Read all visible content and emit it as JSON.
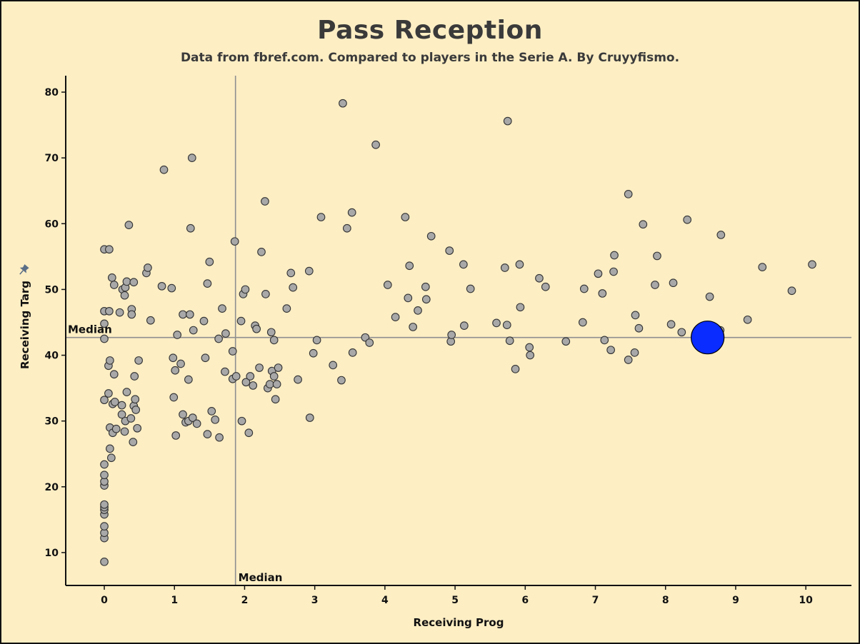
{
  "title": "Pass Reception",
  "subtitle": "Data from fbref.com. Compared to players in the Serie A. By Cruyyfismo.",
  "colors": {
    "background": "#fdeec4",
    "point_fill": "#a8a8a8",
    "point_stroke": "#333333",
    "highlight_fill": "#0a2cff",
    "median_line": "#8f8f8f"
  },
  "chart_data": {
    "type": "scatter",
    "xlabel": "Receiving Prog",
    "ylabel": "Receiving Targ",
    "xlim": [
      -0.55,
      10.65
    ],
    "ylim": [
      5,
      82.5
    ],
    "xticks": [
      0,
      1,
      2,
      3,
      4,
      5,
      6,
      7,
      8,
      9,
      10
    ],
    "yticks": [
      10,
      20,
      30,
      40,
      50,
      60,
      70,
      80
    ],
    "grid": false,
    "median": {
      "x": 1.87,
      "y": 42.7,
      "x_label": "Median",
      "y_label": "Median"
    },
    "highlight": {
      "x": 8.6,
      "y": 42.7
    },
    "points": [
      [
        0,
        8.6
      ],
      [
        0,
        12.2
      ],
      [
        0,
        13.0
      ],
      [
        0,
        14.0
      ],
      [
        0,
        15.8
      ],
      [
        0,
        16.5
      ],
      [
        0,
        16.9
      ],
      [
        0,
        17.3
      ],
      [
        0,
        20.2
      ],
      [
        0,
        20.8
      ],
      [
        0,
        21.8
      ],
      [
        0,
        23.4
      ],
      [
        0,
        33.2
      ],
      [
        0,
        42.5
      ],
      [
        0,
        44.8
      ],
      [
        0,
        46.7
      ],
      [
        0,
        56.1
      ],
      [
        0.07,
        56.1
      ],
      [
        0.07,
        46.7
      ],
      [
        0.06,
        38.4
      ],
      [
        0.08,
        39.2
      ],
      [
        0.06,
        34.2
      ],
      [
        0.08,
        29.0
      ],
      [
        0.08,
        25.8
      ],
      [
        0.1,
        24.4
      ],
      [
        0.12,
        32.6
      ],
      [
        0.14,
        37.1
      ],
      [
        0.12,
        28.2
      ],
      [
        0.15,
        32.9
      ],
      [
        0.17,
        28.8
      ],
      [
        0.11,
        51.8
      ],
      [
        0.14,
        50.7
      ],
      [
        0.22,
        46.5
      ],
      [
        0.25,
        31.0
      ],
      [
        0.25,
        32.4
      ],
      [
        0.26,
        50.0
      ],
      [
        0.29,
        49.1
      ],
      [
        0.3,
        50.3
      ],
      [
        0.3,
        30.0
      ],
      [
        0.29,
        28.4
      ],
      [
        0.32,
        51.2
      ],
      [
        0.32,
        34.4
      ],
      [
        0.35,
        59.8
      ],
      [
        0.39,
        47.0
      ],
      [
        0.39,
        46.2
      ],
      [
        0.38,
        30.4
      ],
      [
        0.41,
        26.8
      ],
      [
        0.42,
        32.3
      ],
      [
        0.42,
        51.1
      ],
      [
        0.43,
        36.8
      ],
      [
        0.44,
        33.3
      ],
      [
        0.45,
        31.7
      ],
      [
        0.47,
        28.9
      ],
      [
        0.49,
        39.2
      ],
      [
        0.6,
        52.5
      ],
      [
        0.62,
        53.3
      ],
      [
        0.66,
        45.3
      ],
      [
        0.82,
        50.5
      ],
      [
        0.85,
        68.2
      ],
      [
        0.96,
        50.2
      ],
      [
        0.98,
        39.6
      ],
      [
        0.99,
        33.6
      ],
      [
        1.01,
        37.7
      ],
      [
        1.02,
        27.8
      ],
      [
        1.04,
        43.1
      ],
      [
        1.09,
        38.7
      ],
      [
        1.12,
        46.2
      ],
      [
        1.12,
        31.0
      ],
      [
        1.16,
        29.8
      ],
      [
        1.2,
        30.0
      ],
      [
        1.2,
        36.3
      ],
      [
        1.22,
        46.2
      ],
      [
        1.23,
        59.3
      ],
      [
        1.25,
        70.0
      ],
      [
        1.26,
        30.5
      ],
      [
        1.27,
        43.8
      ],
      [
        1.32,
        29.6
      ],
      [
        1.42,
        45.2
      ],
      [
        1.44,
        39.6
      ],
      [
        1.47,
        50.9
      ],
      [
        1.47,
        28.0
      ],
      [
        1.5,
        54.2
      ],
      [
        1.53,
        31.5
      ],
      [
        1.58,
        30.2
      ],
      [
        1.63,
        42.5
      ],
      [
        1.64,
        27.5
      ],
      [
        1.68,
        47.1
      ],
      [
        1.72,
        37.5
      ],
      [
        1.73,
        43.3
      ],
      [
        1.83,
        40.6
      ],
      [
        1.83,
        36.4
      ],
      [
        1.86,
        57.3
      ],
      [
        1.88,
        36.8
      ],
      [
        1.95,
        45.2
      ],
      [
        1.96,
        30.0
      ],
      [
        1.98,
        49.3
      ],
      [
        2.01,
        50.0
      ],
      [
        2.02,
        35.9
      ],
      [
        2.06,
        28.2
      ],
      [
        2.08,
        36.8
      ],
      [
        2.12,
        35.4
      ],
      [
        2.15,
        44.5
      ],
      [
        2.17,
        44.0
      ],
      [
        2.21,
        38.1
      ],
      [
        2.24,
        55.7
      ],
      [
        2.29,
        63.4
      ],
      [
        2.3,
        49.3
      ],
      [
        2.33,
        35.0
      ],
      [
        2.36,
        35.6
      ],
      [
        2.38,
        43.5
      ],
      [
        2.39,
        37.6
      ],
      [
        2.42,
        36.8
      ],
      [
        2.42,
        42.3
      ],
      [
        2.44,
        33.3
      ],
      [
        2.46,
        35.6
      ],
      [
        2.48,
        38.1
      ],
      [
        2.6,
        47.1
      ],
      [
        2.66,
        52.5
      ],
      [
        2.69,
        50.3
      ],
      [
        2.76,
        36.3
      ],
      [
        2.92,
        52.8
      ],
      [
        2.93,
        30.5
      ],
      [
        2.98,
        40.3
      ],
      [
        3.03,
        42.3
      ],
      [
        3.09,
        61.0
      ],
      [
        3.26,
        38.5
      ],
      [
        3.38,
        36.2
      ],
      [
        3.4,
        78.3
      ],
      [
        3.46,
        59.3
      ],
      [
        3.53,
        61.7
      ],
      [
        3.54,
        40.4
      ],
      [
        3.72,
        42.7
      ],
      [
        3.78,
        41.9
      ],
      [
        3.87,
        72.0
      ],
      [
        4.04,
        50.7
      ],
      [
        4.15,
        45.8
      ],
      [
        4.29,
        61.0
      ],
      [
        4.33,
        48.7
      ],
      [
        4.35,
        53.6
      ],
      [
        4.4,
        44.3
      ],
      [
        4.47,
        46.8
      ],
      [
        4.58,
        50.4
      ],
      [
        4.59,
        48.5
      ],
      [
        4.66,
        58.1
      ],
      [
        4.92,
        55.9
      ],
      [
        4.94,
        42.1
      ],
      [
        4.95,
        43.1
      ],
      [
        5.12,
        53.8
      ],
      [
        5.13,
        44.5
      ],
      [
        5.22,
        50.1
      ],
      [
        5.59,
        44.9
      ],
      [
        5.71,
        53.3
      ],
      [
        5.74,
        44.6
      ],
      [
        5.75,
        75.6
      ],
      [
        5.78,
        42.2
      ],
      [
        5.86,
        37.9
      ],
      [
        5.92,
        53.8
      ],
      [
        5.93,
        47.3
      ],
      [
        6.06,
        41.2
      ],
      [
        6.07,
        40.0
      ],
      [
        6.2,
        51.7
      ],
      [
        6.29,
        50.4
      ],
      [
        6.58,
        42.1
      ],
      [
        6.82,
        45.0
      ],
      [
        6.84,
        50.1
      ],
      [
        7.04,
        52.4
      ],
      [
        7.1,
        49.4
      ],
      [
        7.13,
        42.3
      ],
      [
        7.22,
        40.8
      ],
      [
        7.26,
        52.7
      ],
      [
        7.27,
        55.2
      ],
      [
        7.47,
        64.5
      ],
      [
        7.47,
        39.3
      ],
      [
        7.56,
        40.4
      ],
      [
        7.57,
        46.1
      ],
      [
        7.62,
        44.1
      ],
      [
        7.68,
        59.9
      ],
      [
        7.85,
        50.7
      ],
      [
        7.88,
        55.1
      ],
      [
        8.08,
        44.7
      ],
      [
        8.11,
        51.0
      ],
      [
        8.23,
        43.5
      ],
      [
        8.31,
        60.6
      ],
      [
        8.63,
        48.9
      ],
      [
        8.78,
        43.8
      ],
      [
        8.79,
        58.3
      ],
      [
        9.17,
        45.4
      ],
      [
        9.38,
        53.4
      ],
      [
        9.8,
        49.8
      ],
      [
        10.09,
        53.8
      ]
    ]
  }
}
